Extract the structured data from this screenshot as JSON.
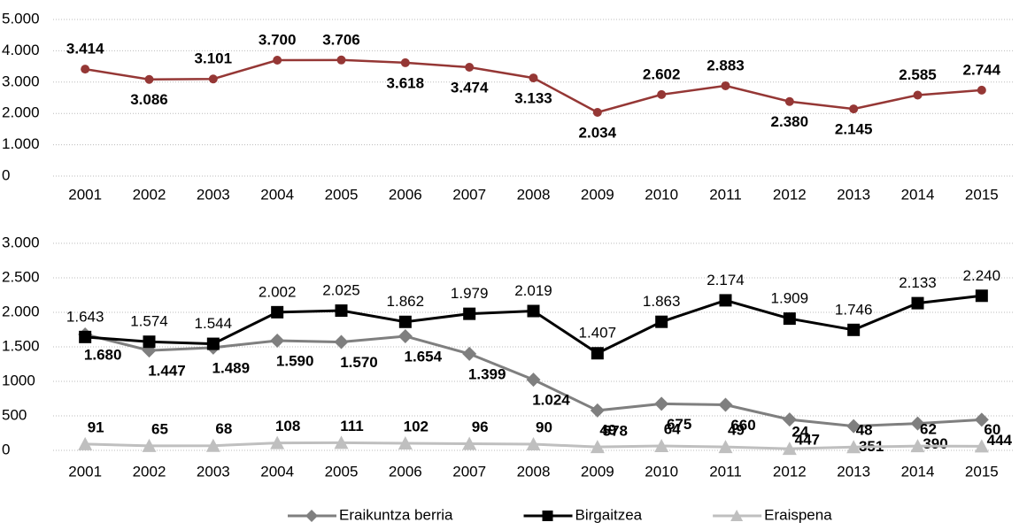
{
  "chart_data": [
    {
      "type": "line",
      "color": "#953735",
      "categories": [
        "2001",
        "2002",
        "2003",
        "2004",
        "2005",
        "2006",
        "2007",
        "2008",
        "2009",
        "2010",
        "2011",
        "2012",
        "2013",
        "2014",
        "2015"
      ],
      "values": [
        3414,
        3086,
        3101,
        3700,
        3706,
        3618,
        3474,
        3133,
        2034,
        2602,
        2883,
        2380,
        2145,
        2585,
        2744
      ],
      "value_labels": [
        "3.414",
        "3.086",
        "3.101",
        "3.700",
        "3.706",
        "3.618",
        "3.474",
        "3.133",
        "2.034",
        "2.602",
        "2.883",
        "2.380",
        "2.145",
        "2.585",
        "2.744"
      ],
      "ylim": [
        0,
        5000
      ],
      "yticks": [
        0,
        {
          "value": 1000,
          "label": "1.000"
        },
        {
          "value": 2000,
          "label": "2.000"
        },
        {
          "value": 3000,
          "label": "3.000"
        },
        {
          "value": 4000,
          "label": "4.000"
        },
        {
          "value": 5000,
          "label": "5.000"
        }
      ],
      "grid": true
    },
    {
      "type": "line",
      "categories": [
        "2001",
        "2002",
        "2003",
        "2004",
        "2005",
        "2006",
        "2007",
        "2008",
        "2009",
        "2010",
        "2011",
        "2012",
        "2013",
        "2014",
        "2015"
      ],
      "series": [
        {
          "name": "Eraikuntza berria",
          "color": "#7f7f7f",
          "marker": "diamond",
          "values": [
            1680,
            1447,
            1489,
            1590,
            1570,
            1654,
            1399,
            1024,
            578,
            675,
            660,
            447,
            351,
            390,
            444
          ],
          "value_labels": [
            "1.680",
            "1.447",
            "1.489",
            "1.590",
            "1.570",
            "1.654",
            "1.399",
            "1.024",
            "578",
            "675",
            "660",
            "447",
            "351",
            "390",
            "444"
          ]
        },
        {
          "name": "Birgaitzea",
          "color": "#000000",
          "marker": "square",
          "values": [
            1643,
            1574,
            1544,
            2002,
            2025,
            1862,
            1979,
            2019,
            1407,
            1863,
            2174,
            1909,
            1746,
            2133,
            2240
          ],
          "value_labels": [
            "1.643",
            "1.574",
            "1.544",
            "2.002",
            "2.025",
            "1.862",
            "1.979",
            "2.019",
            "1.407",
            "1.863",
            "2.174",
            "1.909",
            "1.746",
            "2.133",
            "2.240"
          ]
        },
        {
          "name": "Eraispena",
          "color": "#bfbfbf",
          "marker": "triangle",
          "values": [
            91,
            65,
            68,
            108,
            111,
            102,
            96,
            90,
            49,
            64,
            49,
            24,
            48,
            62,
            60
          ]
        }
      ],
      "ylim": [
        0,
        3000
      ],
      "yticks": [
        0,
        500,
        1000,
        {
          "value": 1500,
          "label": "1.500"
        },
        {
          "value": 2000,
          "label": "2.000"
        },
        {
          "value": 2500,
          "label": "2.500"
        },
        {
          "value": 3000,
          "label": "3.000"
        }
      ],
      "grid": true,
      "legend": "bottom"
    }
  ]
}
